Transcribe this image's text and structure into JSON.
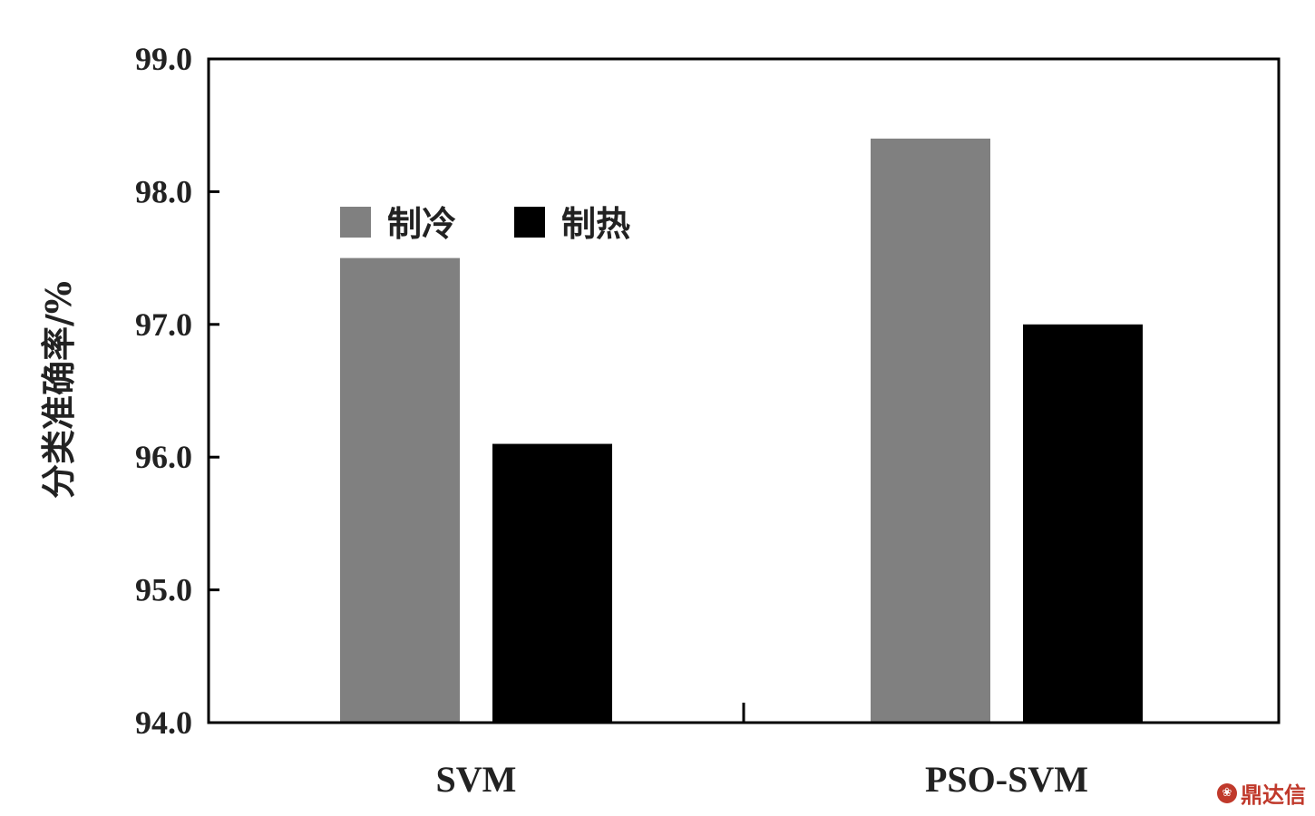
{
  "chart_data": {
    "type": "bar",
    "categories": [
      "SVM",
      "PSO-SVM"
    ],
    "series": [
      {
        "name": "制冷",
        "values": [
          97.5,
          98.4
        ],
        "color": "#808080"
      },
      {
        "name": "制热",
        "values": [
          96.1,
          97.0
        ],
        "color": "#000000"
      }
    ],
    "ylabel": "分类准确率/%",
    "ylim": [
      94.0,
      99.0
    ],
    "yticks": [
      "94.0",
      "95.0",
      "96.0",
      "97.0",
      "98.0",
      "99.0"
    ],
    "legend_position": "top-left inside",
    "grid": false
  },
  "watermark": {
    "text": "鼎达信",
    "icon": "logo-icon"
  }
}
